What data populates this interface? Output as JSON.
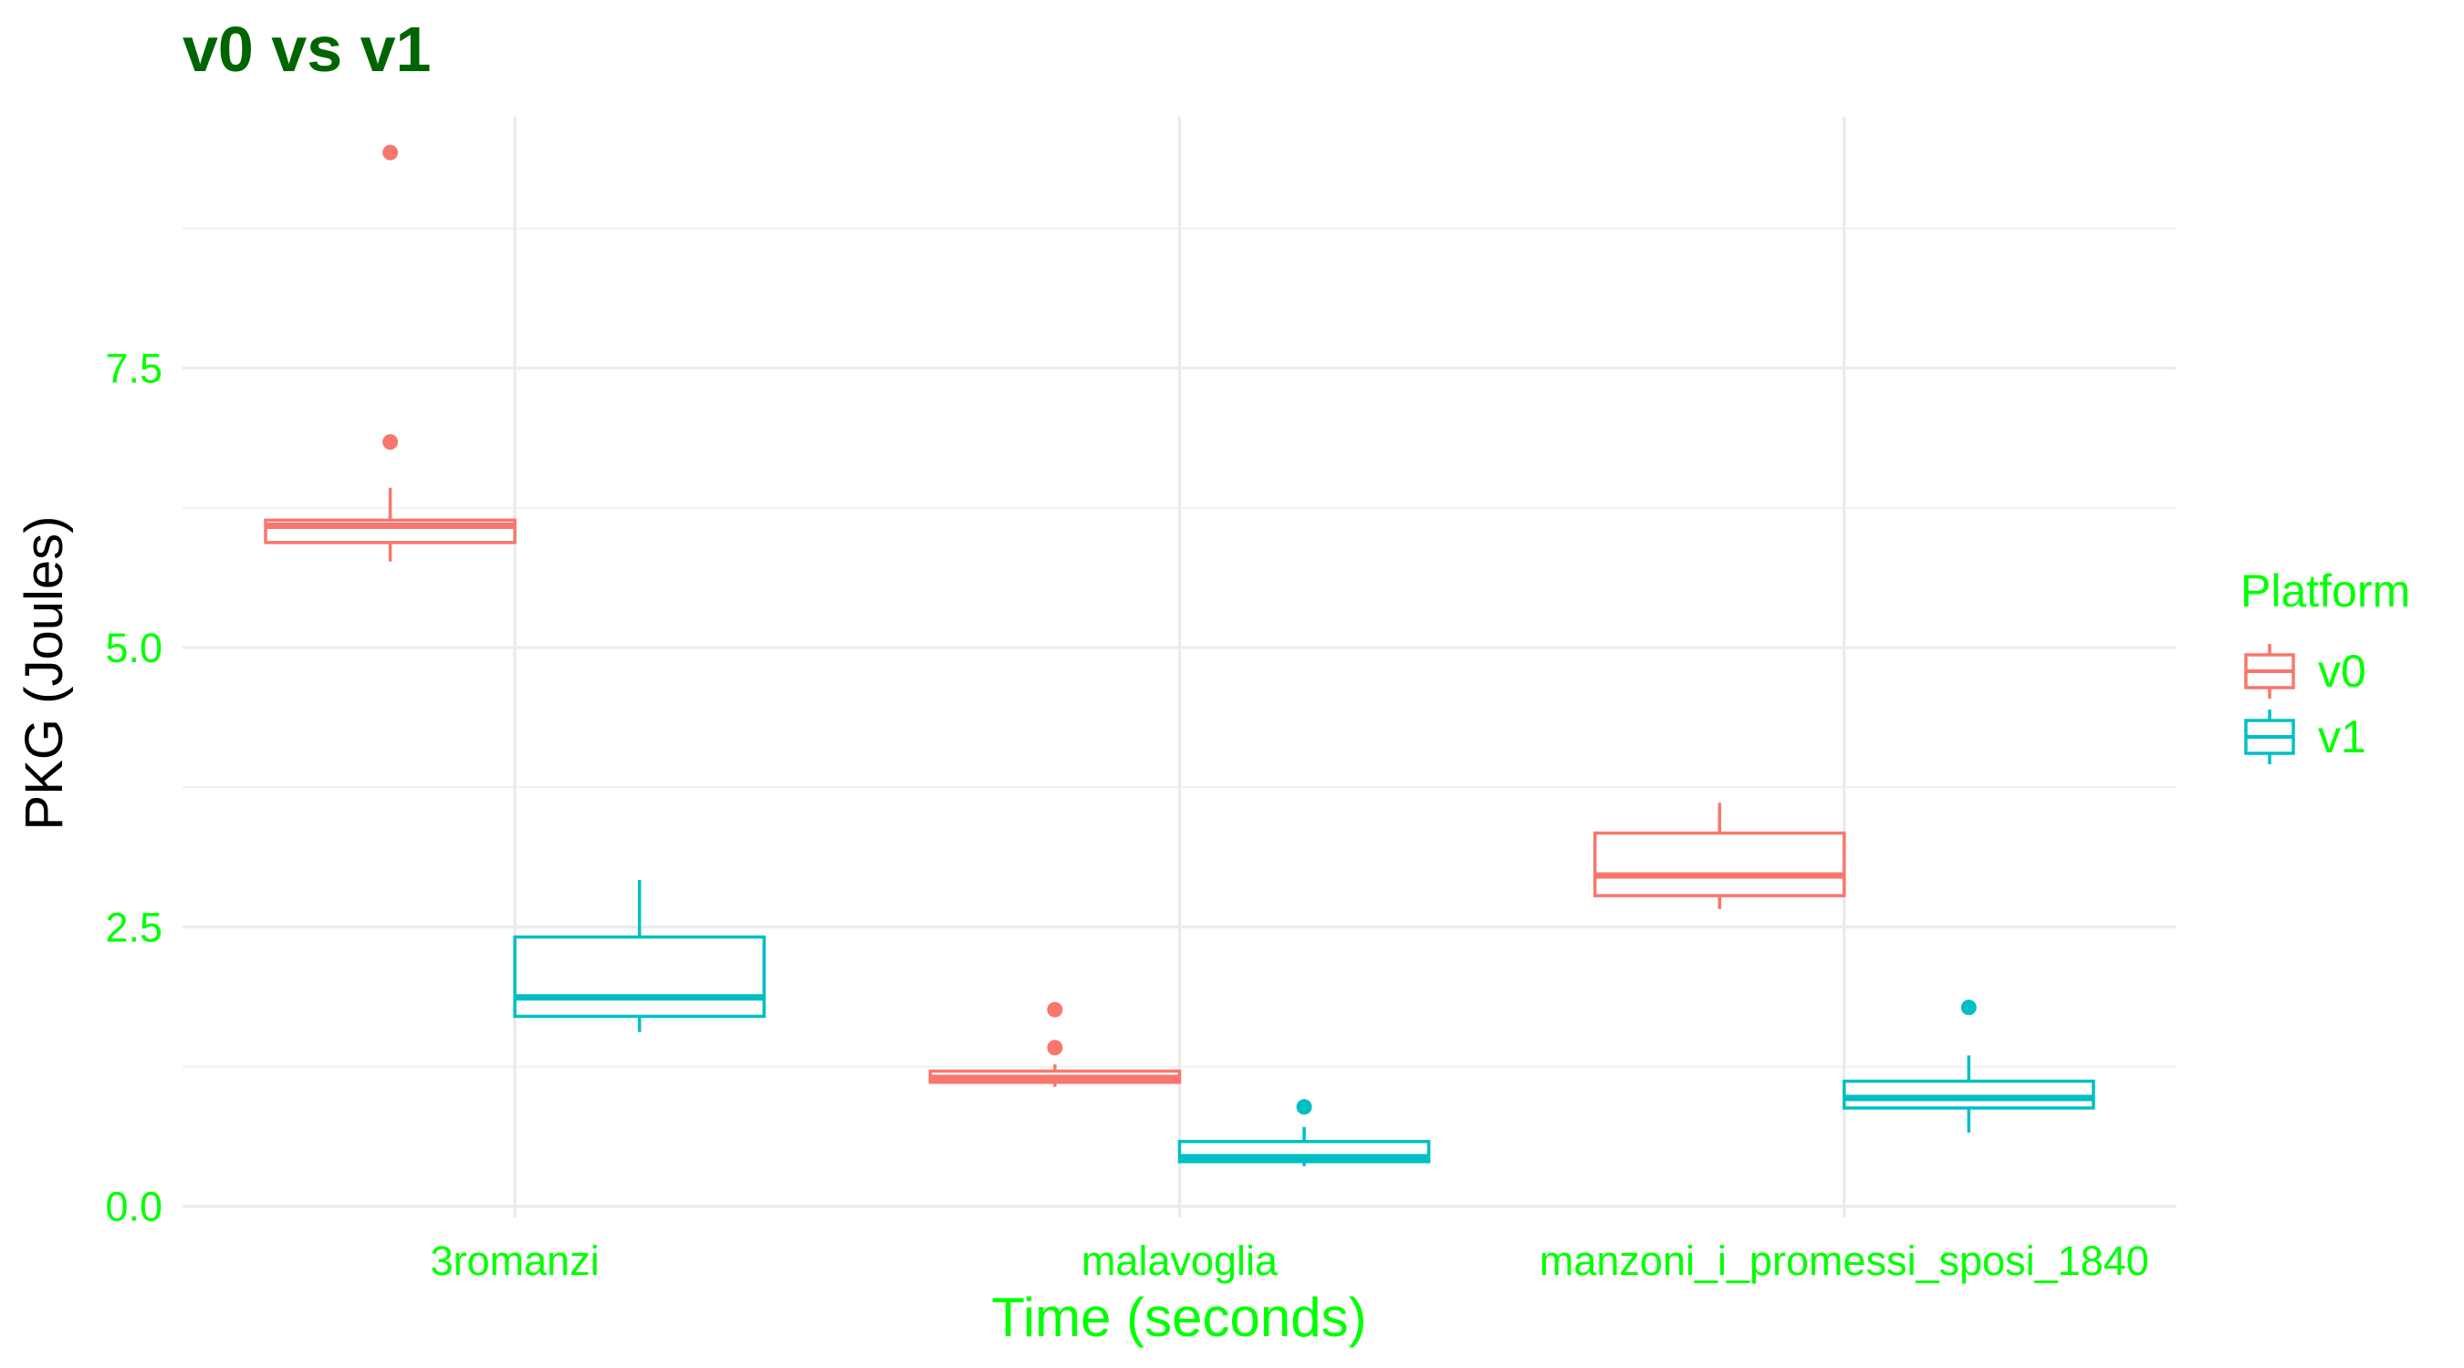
{
  "chart_data": {
    "type": "boxplot",
    "title": "v0 vs v1",
    "xlabel": "Time (seconds)",
    "ylabel": "PKG (Joules)",
    "categories": [
      "3romanzi",
      "malavoglia",
      "manzoni_i_promessi_sposi_1840"
    ],
    "ylim": [
      -0.1,
      9.75
    ],
    "yticks": [
      0.0,
      2.5,
      5.0,
      7.5
    ],
    "ytick_labels": [
      "0.0",
      "2.5",
      "5.0",
      "7.5"
    ],
    "grid": true,
    "legend": {
      "title": "Platform",
      "position": "right",
      "entries": [
        "v0",
        "v1"
      ]
    },
    "series": [
      {
        "name": "v0",
        "color": "#f8766d",
        "boxes": [
          {
            "category": "3romanzi",
            "whisker_low": 5.77,
            "q1": 5.94,
            "median": 6.09,
            "q3": 6.14,
            "whisker_high": 6.43,
            "outliers": [
              6.84,
              9.43
            ]
          },
          {
            "category": "malavoglia",
            "whisker_low": 1.07,
            "q1": 1.11,
            "median": 1.15,
            "q3": 1.21,
            "whisker_high": 1.27,
            "outliers": [
              1.42,
              1.76
            ]
          },
          {
            "category": "manzoni_i_promessi_sposi_1840",
            "whisker_low": 2.66,
            "q1": 2.78,
            "median": 2.96,
            "q3": 3.34,
            "whisker_high": 3.61,
            "outliers": []
          }
        ]
      },
      {
        "name": "v1",
        "color": "#00bfc4",
        "boxes": [
          {
            "category": "3romanzi",
            "whisker_low": 1.56,
            "q1": 1.7,
            "median": 1.87,
            "q3": 2.41,
            "whisker_high": 2.92,
            "outliers": []
          },
          {
            "category": "malavoglia",
            "whisker_low": 0.36,
            "q1": 0.4,
            "median": 0.44,
            "q3": 0.58,
            "whisker_high": 0.71,
            "outliers": [
              0.89
            ]
          },
          {
            "category": "manzoni_i_promessi_sposi_1840",
            "whisker_low": 0.66,
            "q1": 0.88,
            "median": 0.97,
            "q3": 1.12,
            "whisker_high": 1.35,
            "outliers": [
              1.78
            ]
          }
        ]
      }
    ]
  }
}
